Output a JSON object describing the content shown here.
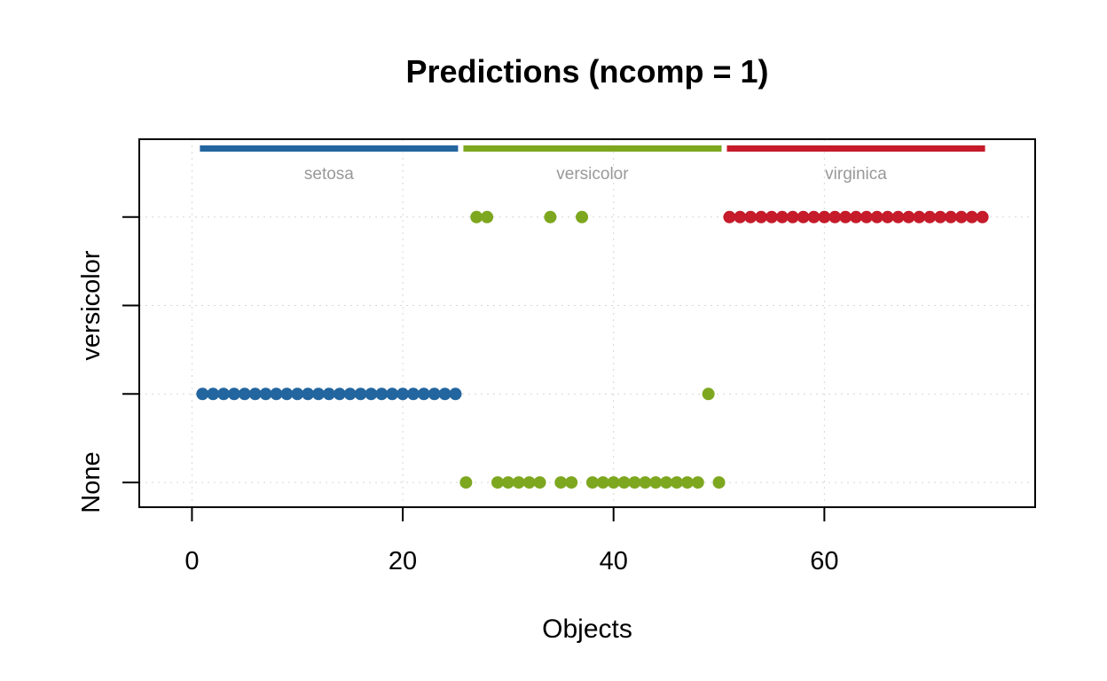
{
  "chart_data": {
    "type": "scatter",
    "title": "Predictions (ncomp = 1)",
    "xlabel": "Objects",
    "ylabel": "",
    "xlim": [
      -5,
      80
    ],
    "ylim": [
      0.72,
      4.88
    ],
    "x_ticks": [
      0,
      20,
      40,
      60
    ],
    "y_ticks": [
      1,
      2,
      3,
      4
    ],
    "y_tick_labels": [
      {
        "at": 1,
        "label": "None"
      },
      {
        "at": 3,
        "label": "versicolor"
      }
    ],
    "grid": true,
    "groups": [
      {
        "name": "setosa",
        "color": "#22659f",
        "range": [
          1,
          25
        ]
      },
      {
        "name": "versicolor",
        "color": "#7da71f",
        "range": [
          26,
          50
        ]
      },
      {
        "name": "virginica",
        "color": "#c51b2a",
        "range": [
          51,
          75
        ]
      }
    ],
    "series": [
      {
        "name": "setosa",
        "color": "#22659f",
        "points": [
          [
            1,
            2
          ],
          [
            2,
            2
          ],
          [
            3,
            2
          ],
          [
            4,
            2
          ],
          [
            5,
            2
          ],
          [
            6,
            2
          ],
          [
            7,
            2
          ],
          [
            8,
            2
          ],
          [
            9,
            2
          ],
          [
            10,
            2
          ],
          [
            11,
            2
          ],
          [
            12,
            2
          ],
          [
            13,
            2
          ],
          [
            14,
            2
          ],
          [
            15,
            2
          ],
          [
            16,
            2
          ],
          [
            17,
            2
          ],
          [
            18,
            2
          ],
          [
            19,
            2
          ],
          [
            20,
            2
          ],
          [
            21,
            2
          ],
          [
            22,
            2
          ],
          [
            23,
            2
          ],
          [
            24,
            2
          ],
          [
            25,
            2
          ]
        ]
      },
      {
        "name": "versicolor",
        "color": "#7da71f",
        "points": [
          [
            26,
            1
          ],
          [
            27,
            4
          ],
          [
            28,
            4
          ],
          [
            29,
            1
          ],
          [
            30,
            1
          ],
          [
            31,
            1
          ],
          [
            32,
            1
          ],
          [
            33,
            1
          ],
          [
            34,
            4
          ],
          [
            35,
            1
          ],
          [
            36,
            1
          ],
          [
            37,
            4
          ],
          [
            38,
            1
          ],
          [
            39,
            1
          ],
          [
            40,
            1
          ],
          [
            41,
            1
          ],
          [
            42,
            1
          ],
          [
            43,
            1
          ],
          [
            44,
            1
          ],
          [
            45,
            1
          ],
          [
            46,
            1
          ],
          [
            47,
            1
          ],
          [
            48,
            1
          ],
          [
            49,
            2
          ],
          [
            50,
            1
          ]
        ]
      },
      {
        "name": "virginica",
        "color": "#c51b2a",
        "points": [
          [
            51,
            4
          ],
          [
            52,
            4
          ],
          [
            53,
            4
          ],
          [
            54,
            4
          ],
          [
            55,
            4
          ],
          [
            56,
            4
          ],
          [
            57,
            4
          ],
          [
            58,
            4
          ],
          [
            59,
            4
          ],
          [
            60,
            4
          ],
          [
            61,
            4
          ],
          [
            62,
            4
          ],
          [
            63,
            4
          ],
          [
            64,
            4
          ],
          [
            65,
            4
          ],
          [
            66,
            4
          ],
          [
            67,
            4
          ],
          [
            68,
            4
          ],
          [
            69,
            4
          ],
          [
            70,
            4
          ],
          [
            71,
            4
          ],
          [
            72,
            4
          ],
          [
            73,
            4
          ],
          [
            74,
            4
          ],
          [
            75,
            4
          ]
        ]
      }
    ]
  }
}
